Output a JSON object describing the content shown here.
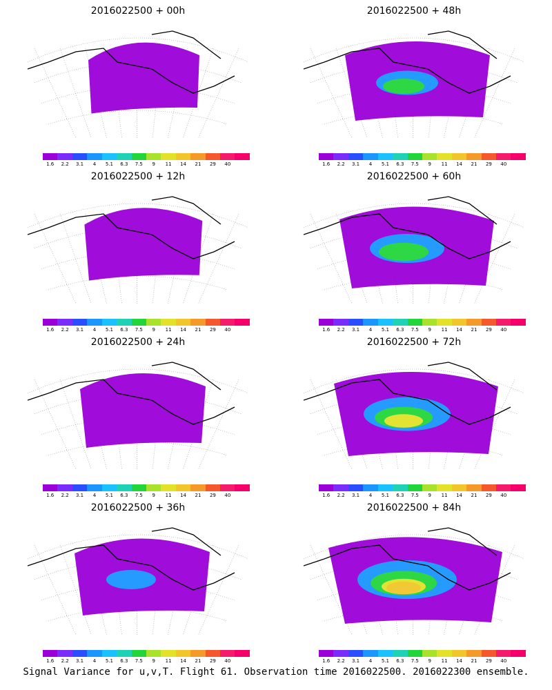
{
  "panels": [
    {
      "title": "2016022500 + 00h",
      "coverage": 0.15
    },
    {
      "title": "2016022500 + 48h",
      "coverage": 0.5
    },
    {
      "title": "2016022500 + 12h",
      "coverage": 0.22
    },
    {
      "title": "2016022500 + 60h",
      "coverage": 0.6
    },
    {
      "title": "2016022500 + 24h",
      "coverage": 0.3
    },
    {
      "title": "2016022500 + 72h",
      "coverage": 0.7
    },
    {
      "title": "2016022500 + 36h",
      "coverage": 0.4
    },
    {
      "title": "2016022500 + 84h",
      "coverage": 0.8
    }
  ],
  "legend": {
    "labels": [
      "1.6",
      "2.2",
      "3.1",
      "4",
      "5.1",
      "6.3",
      "7.5",
      "9",
      "11",
      "14",
      "21",
      "29",
      "40"
    ],
    "colors": [
      "#9b00d8",
      "#7a2cff",
      "#2a4dff",
      "#1b96ff",
      "#19c2ff",
      "#20d2b4",
      "#22d63a",
      "#a8e22a",
      "#e2e22a",
      "#f2c62a",
      "#f59a2a",
      "#f5582a",
      "#f51a6a",
      "#f5006a"
    ]
  },
  "footer": "Signal Variance for u,v,T. Flight 61. Observation time 2016022500. 2016022300 ensemble."
}
